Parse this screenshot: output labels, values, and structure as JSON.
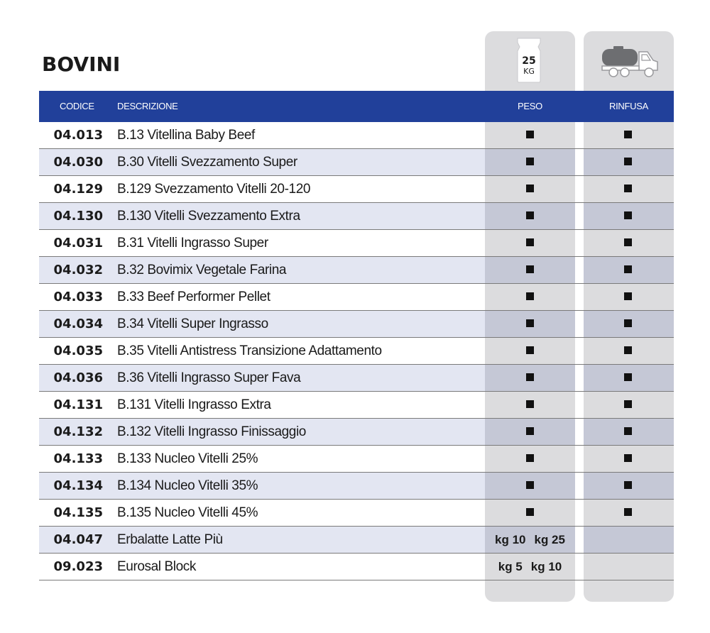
{
  "title": "BOVINI",
  "icons": {
    "bag": {
      "name": "bag-25kg-icon",
      "number": "25",
      "unit": "KG"
    },
    "truck": {
      "name": "tanker-truck-icon"
    }
  },
  "headers": {
    "code": "CODICE",
    "description": "DESCRIZIONE",
    "weight": "PESO",
    "bulk": "RINFUSA"
  },
  "colors": {
    "header": "#21409a",
    "column_bg": "#dcdcde",
    "row_alt": "#e3e6f2"
  },
  "rows": [
    {
      "code": "04.013",
      "description": "B.13  Vitellina Baby Beef",
      "peso": true,
      "rinfusa": true
    },
    {
      "code": "04.030",
      "description": "B.30  Vitelli Svezzamento Super",
      "peso": true,
      "rinfusa": true
    },
    {
      "code": "04.129",
      "description": "B.129 Svezzamento Vitelli 20-120",
      "peso": true,
      "rinfusa": true
    },
    {
      "code": "04.130",
      "description": "B.130 Vitelli Svezzamento Extra",
      "peso": true,
      "rinfusa": true
    },
    {
      "code": "04.031",
      "description": "B.31  Vitelli Ingrasso Super",
      "peso": true,
      "rinfusa": true
    },
    {
      "code": "04.032",
      "description": "B.32 Bovimix Vegetale Farina",
      "peso": true,
      "rinfusa": true
    },
    {
      "code": "04.033",
      "description": "B.33 Beef Performer Pellet",
      "peso": true,
      "rinfusa": true
    },
    {
      "code": "04.034",
      "description": "B.34 Vitelli Super Ingrasso",
      "peso": true,
      "rinfusa": true
    },
    {
      "code": "04.035",
      "description": "B.35 Vitelli Antistress Transizione Adattamento",
      "peso": true,
      "rinfusa": true
    },
    {
      "code": "04.036",
      "description": "B.36 Vitelli Ingrasso Super Fava",
      "peso": true,
      "rinfusa": true
    },
    {
      "code": "04.131",
      "description": "B.131 Vitelli Ingrasso Extra",
      "peso": true,
      "rinfusa": true
    },
    {
      "code": "04.132",
      "description": "B.132 Vitelli Ingrasso Finissaggio",
      "peso": true,
      "rinfusa": true
    },
    {
      "code": "04.133",
      "description": "B.133 Nucleo Vitelli 25%",
      "peso": true,
      "rinfusa": true
    },
    {
      "code": "04.134",
      "description": "B.134 Nucleo Vitelli 35%",
      "peso": true,
      "rinfusa": true
    },
    {
      "code": "04.135",
      "description": "B.135 Nucleo Vitelli 45%",
      "peso": true,
      "rinfusa": true
    },
    {
      "code": "04.047",
      "description": "Erbalatte Latte Più",
      "peso_sizes": [
        "kg 10",
        "kg 25"
      ],
      "rinfusa": false
    },
    {
      "code": "09.023",
      "description": "Eurosal Block",
      "peso_sizes": [
        "kg 5",
        "kg 10"
      ],
      "rinfusa": false
    }
  ]
}
